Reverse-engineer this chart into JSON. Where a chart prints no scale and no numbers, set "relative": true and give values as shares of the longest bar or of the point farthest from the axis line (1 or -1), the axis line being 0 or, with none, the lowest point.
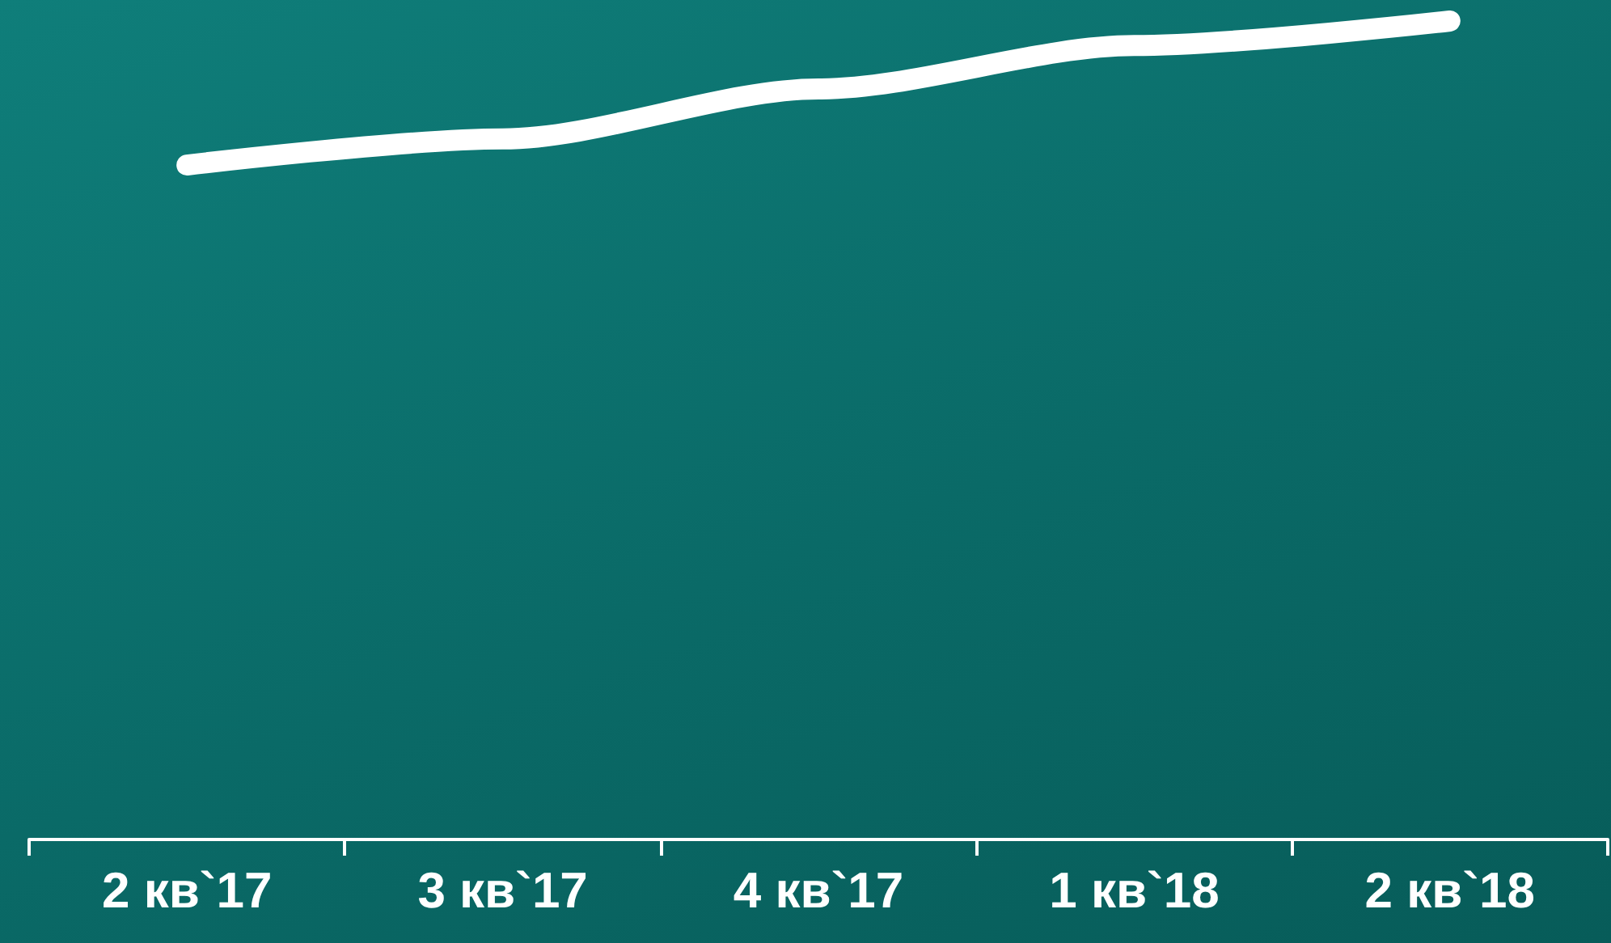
{
  "chart_data": {
    "type": "line",
    "relative": true,
    "categories": [
      "2 кв`17",
      "3 кв`17",
      "4 кв`17",
      "1 кв`18",
      "2 кв`18"
    ],
    "series": [
      {
        "color": "#ffffff",
        "values": [
          0.824,
          0.856,
          0.917,
          0.97,
          1
        ]
      }
    ]
  }
}
